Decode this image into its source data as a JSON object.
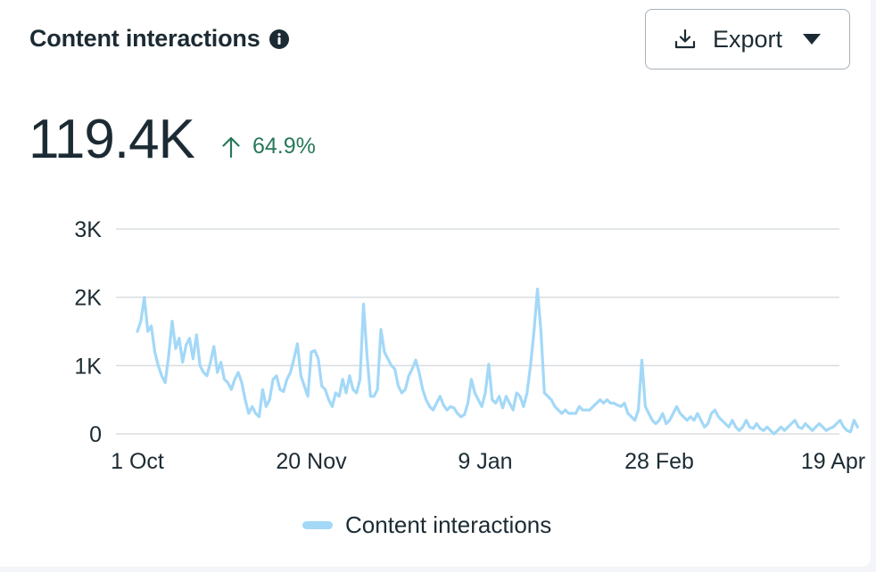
{
  "header": {
    "title": "Content interactions",
    "info_icon": "info-icon",
    "export_label": "Export",
    "export_icon": "download-icon",
    "caret_icon": "caret-down-icon"
  },
  "summary": {
    "value": "119.4K",
    "change": "64.9%",
    "change_icon": "arrow-up-icon",
    "change_color": "#29785a"
  },
  "colors": {
    "series": "#a3d8f7",
    "grid": "#dadde1",
    "text": "#1c2b33"
  },
  "chart_data": {
    "type": "line",
    "start_date": "1 Oct",
    "ylim": [
      0,
      3000
    ],
    "yticks": [
      0,
      1000,
      2000,
      3000
    ],
    "ytick_labels": [
      "0",
      "1K",
      "2K",
      "3K"
    ],
    "xtick_labels": [
      {
        "label": "1 Oct",
        "index": 0
      },
      {
        "label": "20 Nov",
        "index": 50
      },
      {
        "label": "9 Jan",
        "index": 100
      },
      {
        "label": "28 Feb",
        "index": 150
      },
      {
        "label": "19 Apr",
        "index": 200
      }
    ],
    "grid": true,
    "legend_position": "bottom",
    "series": [
      {
        "name": "Content interactions",
        "color": "#a3d8f7",
        "values": [
          1500,
          1650,
          2000,
          1500,
          1580,
          1200,
          1000,
          850,
          750,
          1150,
          1650,
          1250,
          1400,
          1050,
          1300,
          1400,
          1100,
          1450,
          1000,
          900,
          850,
          1050,
          1280,
          900,
          1050,
          800,
          750,
          650,
          800,
          900,
          750,
          500,
          300,
          400,
          300,
          250,
          650,
          400,
          500,
          800,
          850,
          650,
          620,
          800,
          900,
          1100,
          1320,
          850,
          700,
          550,
          1200,
          1220,
          1100,
          700,
          650,
          500,
          400,
          600,
          550,
          800,
          600,
          850,
          650,
          600,
          800,
          1900,
          1150,
          550,
          550,
          650,
          1530,
          1200,
          1100,
          1000,
          950,
          700,
          600,
          650,
          850,
          950,
          1080,
          900,
          650,
          500,
          400,
          350,
          450,
          550,
          420,
          350,
          400,
          380,
          300,
          250,
          280,
          450,
          800,
          600,
          500,
          400,
          600,
          1020,
          500,
          450,
          550,
          380,
          550,
          450,
          350,
          600,
          550,
          400,
          600,
          1000,
          1500,
          2120,
          1500,
          600,
          550,
          500,
          400,
          350,
          300,
          350,
          300,
          300,
          300,
          400,
          350,
          350,
          350,
          400,
          450,
          500,
          450,
          500,
          450,
          450,
          420,
          400,
          450,
          300,
          250,
          200,
          350,
          1080,
          400,
          300,
          200,
          150,
          200,
          300,
          150,
          200,
          300,
          400,
          300,
          250,
          200,
          250,
          200,
          300,
          200,
          100,
          150,
          300,
          350,
          250,
          200,
          150,
          100,
          200,
          100,
          50,
          100,
          200,
          100,
          80,
          150,
          80,
          50,
          100,
          50,
          0,
          50,
          100,
          50,
          100,
          150,
          200,
          100,
          80,
          150,
          100,
          50,
          100,
          150,
          100,
          50,
          80,
          100,
          150,
          200,
          100,
          50,
          30,
          200,
          100
        ]
      }
    ]
  }
}
